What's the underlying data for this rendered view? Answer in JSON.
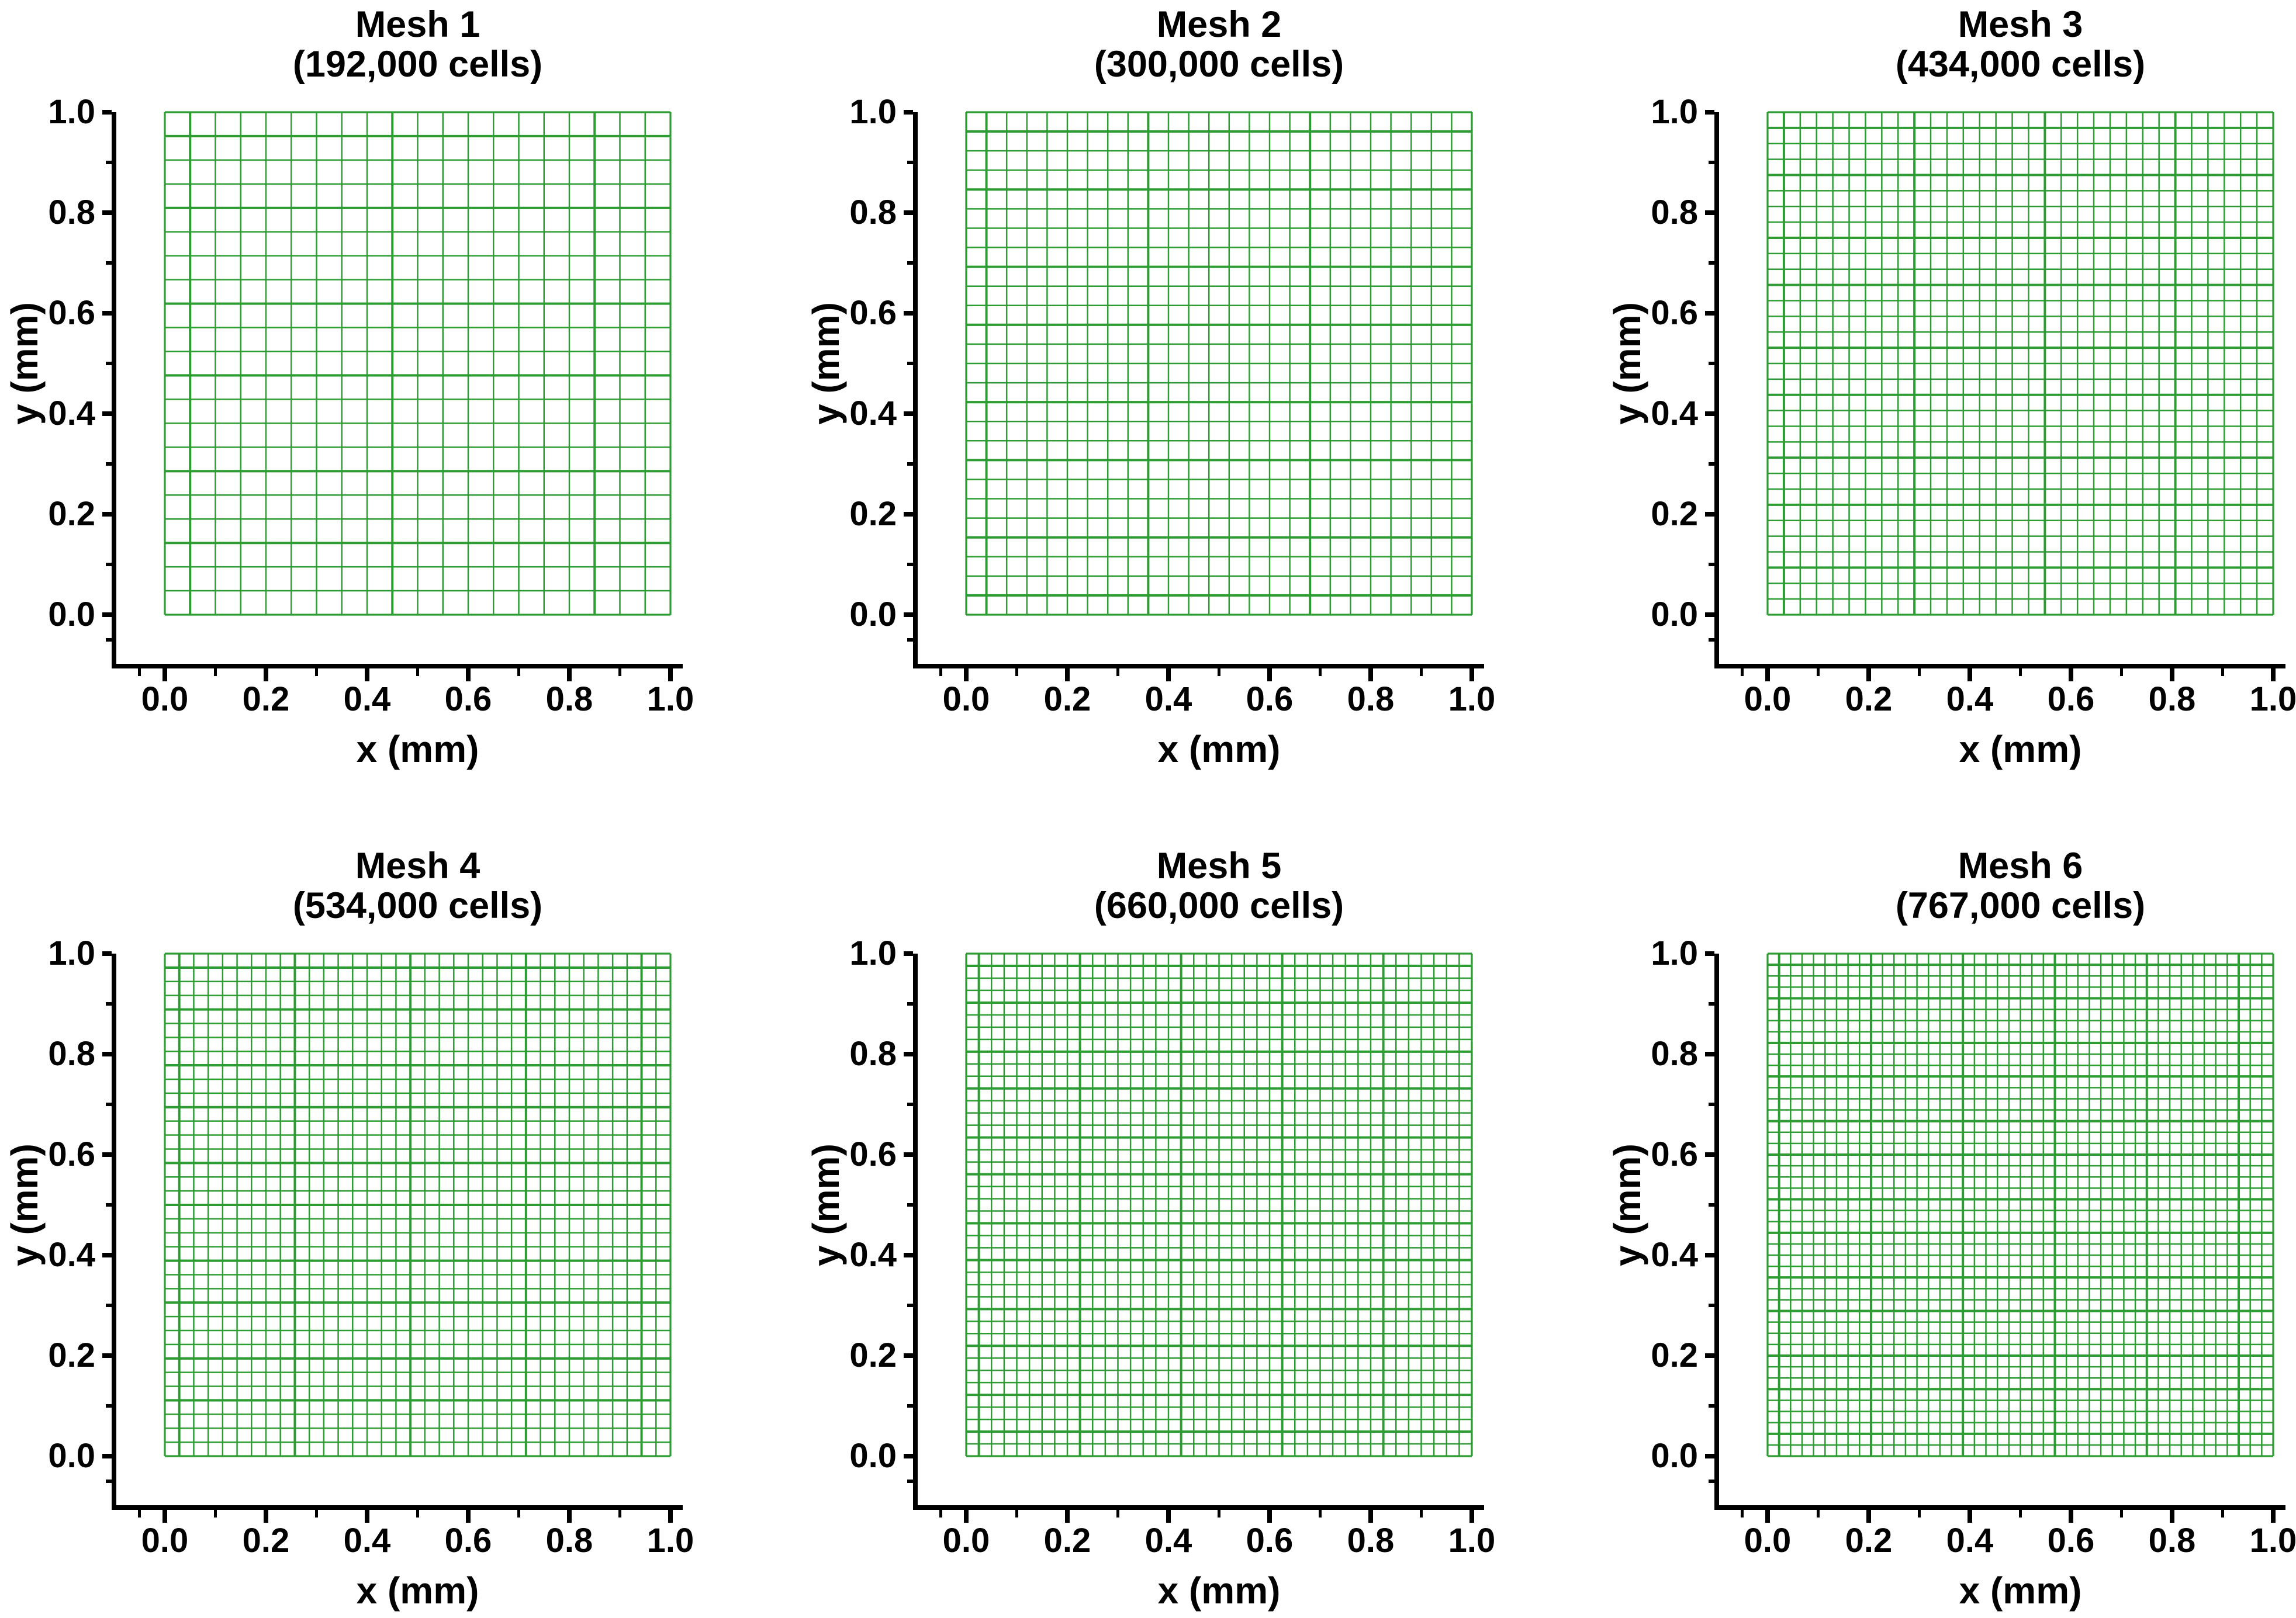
{
  "figure": {
    "background": "#ffffff",
    "mesh_color": "#2d9d33",
    "axis_color": "#000000"
  },
  "chart_data": [
    {
      "type": "heatmap",
      "subtype": "structured-mesh-grid",
      "title": "Mesh 1",
      "subtitle": "(192,000 cells)",
      "cells": "192,000",
      "nx": 20,
      "ny": 21,
      "xlabel": "x (mm)",
      "ylabel": "y (mm)",
      "xlim": [
        0,
        1
      ],
      "ylim": [
        0,
        1
      ],
      "x_ticks": [
        0.0,
        0.2,
        0.4,
        0.6,
        0.8,
        1.0
      ],
      "x_tick_labels": [
        "0.0",
        "0.2",
        "0.4",
        "0.6",
        "0.8",
        "1.0"
      ],
      "x_minor_ticks": [
        -0.05,
        0.1,
        0.3,
        0.5,
        0.7,
        0.9
      ],
      "y_ticks": [
        1.0,
        0.8,
        0.6,
        0.4,
        0.2,
        0.0
      ],
      "y_tick_labels": [
        "1.0",
        "0.8",
        "0.6",
        "0.4",
        "0.2",
        "0.0"
      ],
      "y_minor_ticks": [
        -0.05,
        0.1,
        0.3,
        0.5,
        0.7,
        0.9
      ]
    },
    {
      "type": "heatmap",
      "subtype": "structured-mesh-grid",
      "title": "Mesh 2",
      "subtitle": "(300,000 cells)",
      "cells": "300,000",
      "nx": 25,
      "ny": 26,
      "xlabel": "x (mm)",
      "ylabel": "y (mm)",
      "xlim": [
        0,
        1
      ],
      "ylim": [
        0,
        1
      ],
      "x_ticks": [
        0.0,
        0.2,
        0.4,
        0.6,
        0.8,
        1.0
      ],
      "x_tick_labels": [
        "0.0",
        "0.2",
        "0.4",
        "0.6",
        "0.8",
        "1.0"
      ],
      "x_minor_ticks": [
        -0.05,
        0.1,
        0.3,
        0.5,
        0.7,
        0.9
      ],
      "y_ticks": [
        1.0,
        0.8,
        0.6,
        0.4,
        0.2,
        0.0
      ],
      "y_tick_labels": [
        "1.0",
        "0.8",
        "0.6",
        "0.4",
        "0.2",
        "0.0"
      ],
      "y_minor_ticks": [
        -0.05,
        0.1,
        0.3,
        0.5,
        0.7,
        0.9
      ]
    },
    {
      "type": "heatmap",
      "subtype": "structured-mesh-grid",
      "title": "Mesh 3",
      "subtitle": "(434,000 cells)",
      "cells": "434,000",
      "nx": 31,
      "ny": 32,
      "xlabel": "x (mm)",
      "ylabel": "y (mm)",
      "xlim": [
        0,
        1
      ],
      "ylim": [
        0,
        1
      ],
      "x_ticks": [
        0.0,
        0.2,
        0.4,
        0.6,
        0.8,
        1.0
      ],
      "x_tick_labels": [
        "0.0",
        "0.2",
        "0.4",
        "0.6",
        "0.8",
        "1.0"
      ],
      "x_minor_ticks": [
        -0.05,
        0.1,
        0.3,
        0.5,
        0.7,
        0.9
      ],
      "y_ticks": [
        1.0,
        0.8,
        0.6,
        0.4,
        0.2,
        0.0
      ],
      "y_tick_labels": [
        "1.0",
        "0.8",
        "0.6",
        "0.4",
        "0.2",
        "0.0"
      ],
      "y_minor_ticks": [
        -0.05,
        0.1,
        0.3,
        0.5,
        0.7,
        0.9
      ]
    },
    {
      "type": "heatmap",
      "subtype": "structured-mesh-grid",
      "title": "Mesh 4",
      "subtitle": "(534,000 cells)",
      "cells": "534,000",
      "nx": 35,
      "ny": 36,
      "xlabel": "x (mm)",
      "ylabel": "y (mm)",
      "xlim": [
        0,
        1
      ],
      "ylim": [
        0,
        1
      ],
      "x_ticks": [
        0.0,
        0.2,
        0.4,
        0.6,
        0.8,
        1.0
      ],
      "x_tick_labels": [
        "0.0",
        "0.2",
        "0.4",
        "0.6",
        "0.8",
        "1.0"
      ],
      "x_minor_ticks": [
        -0.05,
        0.1,
        0.3,
        0.5,
        0.7,
        0.9
      ],
      "y_ticks": [
        1.0,
        0.8,
        0.6,
        0.4,
        0.2,
        0.0
      ],
      "y_tick_labels": [
        "1.0",
        "0.8",
        "0.6",
        "0.4",
        "0.2",
        "0.0"
      ],
      "y_minor_ticks": [
        -0.05,
        0.1,
        0.3,
        0.5,
        0.7,
        0.9
      ]
    },
    {
      "type": "heatmap",
      "subtype": "structured-mesh-grid",
      "title": "Mesh 5",
      "subtitle": "(660,000 cells)",
      "cells": "660,000",
      "nx": 40,
      "ny": 41,
      "xlabel": "x (mm)",
      "ylabel": "y (mm)",
      "xlim": [
        0,
        1
      ],
      "ylim": [
        0,
        1
      ],
      "x_ticks": [
        0.0,
        0.2,
        0.4,
        0.6,
        0.8,
        1.0
      ],
      "x_tick_labels": [
        "0.0",
        "0.2",
        "0.4",
        "0.6",
        "0.8",
        "1.0"
      ],
      "x_minor_ticks": [
        -0.05,
        0.1,
        0.3,
        0.5,
        0.7,
        0.9
      ],
      "y_ticks": [
        1.0,
        0.8,
        0.6,
        0.4,
        0.2,
        0.0
      ],
      "y_tick_labels": [
        "1.0",
        "0.8",
        "0.6",
        "0.4",
        "0.2",
        "0.0"
      ],
      "y_minor_ticks": [
        -0.05,
        0.1,
        0.3,
        0.5,
        0.7,
        0.9
      ]
    },
    {
      "type": "heatmap",
      "subtype": "structured-mesh-grid",
      "title": "Mesh 6",
      "subtitle": "(767,000 cells)",
      "cells": "767,000",
      "nx": 44,
      "ny": 45,
      "xlabel": "x (mm)",
      "ylabel": "y (mm)",
      "xlim": [
        0,
        1
      ],
      "ylim": [
        0,
        1
      ],
      "x_ticks": [
        0.0,
        0.2,
        0.4,
        0.6,
        0.8,
        1.0
      ],
      "x_tick_labels": [
        "0.0",
        "0.2",
        "0.4",
        "0.6",
        "0.8",
        "1.0"
      ],
      "x_minor_ticks": [
        -0.05,
        0.1,
        0.3,
        0.5,
        0.7,
        0.9
      ],
      "y_ticks": [
        1.0,
        0.8,
        0.6,
        0.4,
        0.2,
        0.0
      ],
      "y_tick_labels": [
        "1.0",
        "0.8",
        "0.6",
        "0.4",
        "0.2",
        "0.0"
      ],
      "y_minor_ticks": [
        -0.05,
        0.1,
        0.3,
        0.5,
        0.7,
        0.9
      ]
    }
  ]
}
